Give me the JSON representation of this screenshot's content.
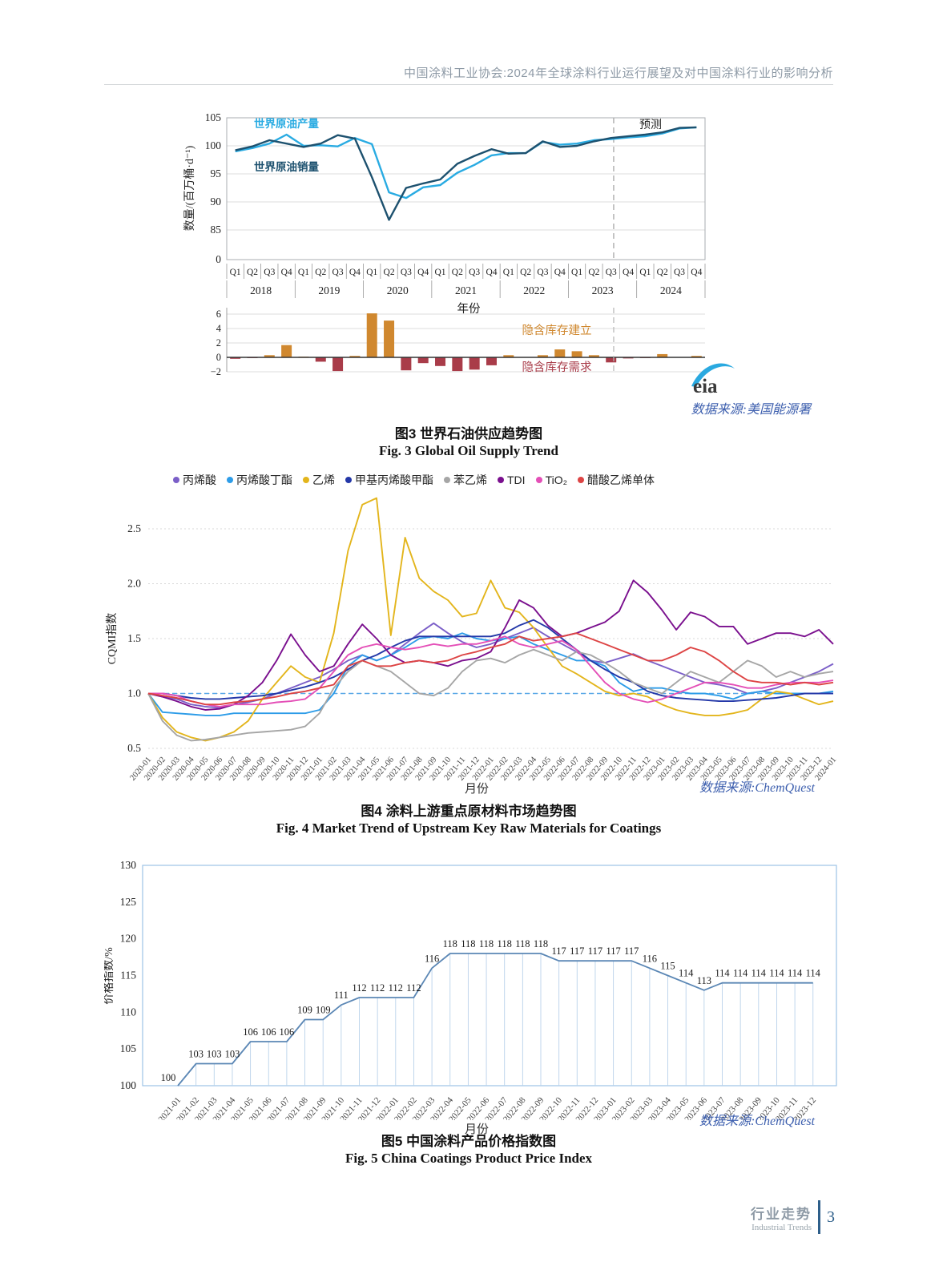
{
  "header": {
    "title": "中国涂料工业协会:2024年全球涂料行业运行展望及对中国涂料行业的影响分析"
  },
  "figures": {
    "fig3": {
      "caption_cn": "图3  世界石油供应趋势图",
      "caption_en": "Fig. 3  Global Oil Supply Trend",
      "source": "数据来源:美国能源署",
      "logo_text": "eia"
    },
    "fig4": {
      "caption_cn": "图4  涂料上游重点原材料市场趋势图",
      "caption_en": "Fig. 4  Market Trend of Upstream Key Raw Materials for Coatings",
      "source": "数据来源:ChemQuest",
      "xlabel": "月份"
    },
    "fig5": {
      "caption_cn": "图5  中国涂料产品价格指数图",
      "caption_en": "Fig. 5  China Coatings Product Price Index",
      "source": "数据来源:ChemQuest",
      "xlabel": "月份"
    }
  },
  "footer": {
    "section_cn": "行业走势",
    "section_en": "Industrial Trends",
    "page_number": "3"
  },
  "chart_data": [
    {
      "id": "fig3",
      "type": "line+bar",
      "title": "世界石油供应趋势图",
      "ylabel": "数量/(百万桶·d⁻¹)",
      "xlabel": "年份",
      "yticks": [
        105,
        100,
        95,
        90,
        85,
        0
      ],
      "ylim": [
        85,
        105
      ],
      "quarter_pattern": [
        "Q1",
        "Q2",
        "Q3",
        "Q4"
      ],
      "years": [
        "2018",
        "2019",
        "2020",
        "2021",
        "2022",
        "2023",
        "2024"
      ],
      "forecast_label": "预测",
      "series": [
        {
          "name": "世界原油产量",
          "color": "#29abe2",
          "values": [
            99.0,
            99.6,
            100.4,
            102.0,
            100.0,
            100.1,
            99.9,
            101.4,
            100.3,
            91.7,
            90.7,
            92.6,
            93.0,
            95.2,
            96.6,
            98.3,
            98.7,
            98.7,
            100.7,
            100.2,
            100.4,
            101.0,
            101.2,
            101.5,
            101.7,
            102.2,
            103.1,
            103.3
          ]
        },
        {
          "name": "世界原油销量",
          "color": "#1d516f",
          "values": [
            99.2,
            99.9,
            101.0,
            100.4,
            99.8,
            100.4,
            101.9,
            101.3,
            94.4,
            86.8,
            92.5,
            93.3,
            94.0,
            96.8,
            98.2,
            99.4,
            98.6,
            98.7,
            100.8,
            99.8,
            100.0,
            100.8,
            101.4,
            101.7,
            102.0,
            102.4,
            103.2,
            103.3
          ]
        }
      ],
      "bars": {
        "label_positive": "隐含库存建立",
        "label_negative": "隐含库存需求",
        "color_positive": "#d0882f",
        "color_negative": "#a93c49",
        "yticks": [
          6,
          4,
          2,
          0,
          -2
        ],
        "values": [
          -0.2,
          -0.1,
          0.3,
          1.7,
          0.1,
          -0.6,
          -1.9,
          0.2,
          6.1,
          5.1,
          -1.8,
          -0.8,
          -1.2,
          -1.9,
          -1.7,
          -1.1,
          0.3,
          0.05,
          0.3,
          1.1,
          0.85,
          0.3,
          -0.7,
          -0.15,
          -0.1,
          0.45,
          0.05,
          0.2
        ]
      }
    },
    {
      "id": "fig4",
      "type": "line",
      "title": "涂料上游重点原材料市场趋势图",
      "ylabel": "CQMI指数",
      "xlabel": "月份",
      "yticks": [
        2.5,
        2.0,
        1.5,
        1.0,
        0.5
      ],
      "baseline": 1.0,
      "x": [
        "2020-01",
        "2020-02",
        "2020-03",
        "2020-04",
        "2020-05",
        "2020-06",
        "2020-07",
        "2020-08",
        "2020-09",
        "2020-10",
        "2020-11",
        "2020-12",
        "2021-01",
        "2021-02",
        "2021-03",
        "2021-04",
        "2021-05",
        "2021-06",
        "2021-07",
        "2021-08",
        "2021-09",
        "2021-10",
        "2021-11",
        "2021-12",
        "2022-01",
        "2022-02",
        "2022-03",
        "2022-04",
        "2022-05",
        "2022-06",
        "2022-07",
        "2022-08",
        "2022-09",
        "2022-10",
        "2022-11",
        "2022-12",
        "2023-01",
        "2023-02",
        "2023-03",
        "2023-04",
        "2023-05",
        "2023-06",
        "2023-07",
        "2023-08",
        "2023-09",
        "2023-10",
        "2023-11",
        "2023-12",
        "2024-01"
      ],
      "series": [
        {
          "name": "丙烯酸",
          "color": "#7b5fc8",
          "values": [
            1.0,
            0.97,
            0.95,
            0.9,
            0.88,
            0.87,
            0.9,
            0.92,
            0.95,
            1.0,
            1.05,
            1.1,
            1.15,
            1.22,
            1.3,
            1.35,
            1.3,
            1.35,
            1.45,
            1.55,
            1.64,
            1.55,
            1.47,
            1.42,
            1.45,
            1.5,
            1.55,
            1.6,
            1.52,
            1.45,
            1.38,
            1.3,
            1.28,
            1.32,
            1.36,
            1.3,
            1.25,
            1.2,
            1.15,
            1.1,
            1.08,
            1.05,
            1.0,
            1.02,
            1.05,
            1.1,
            1.15,
            1.2,
            1.27
          ]
        },
        {
          "name": "丙烯酸丁酯",
          "color": "#2d9ce8",
          "values": [
            1.0,
            0.83,
            0.82,
            0.81,
            0.8,
            0.8,
            0.82,
            0.82,
            0.82,
            0.82,
            0.82,
            0.82,
            0.85,
            1.0,
            1.25,
            1.35,
            1.3,
            1.35,
            1.42,
            1.5,
            1.52,
            1.5,
            1.55,
            1.5,
            1.48,
            1.5,
            1.52,
            1.45,
            1.4,
            1.35,
            1.3,
            1.3,
            1.25,
            1.1,
            1.02,
            1.05,
            1.05,
            1.02,
            1.0,
            1.0,
            0.98,
            0.95,
            1.0,
            1.02,
            1.0,
            1.0,
            1.0,
            1.0,
            1.02
          ]
        },
        {
          "name": "乙烯",
          "color": "#e3b51c",
          "values": [
            1.0,
            0.78,
            0.65,
            0.6,
            0.57,
            0.6,
            0.65,
            0.75,
            0.95,
            1.1,
            1.25,
            1.15,
            1.1,
            1.55,
            2.3,
            2.72,
            2.78,
            1.53,
            2.42,
            2.05,
            1.93,
            1.85,
            1.7,
            1.73,
            2.03,
            1.78,
            1.74,
            1.6,
            1.42,
            1.25,
            1.18,
            1.1,
            1.02,
            0.98,
            1.0,
            0.97,
            0.9,
            0.85,
            0.82,
            0.8,
            0.8,
            0.82,
            0.85,
            0.95,
            1.02,
            1.0,
            0.95,
            0.9,
            0.93
          ]
        },
        {
          "name": "甲基丙烯酸甲酯",
          "color": "#2438a8",
          "values": [
            1.0,
            1.0,
            0.98,
            0.96,
            0.95,
            0.95,
            0.96,
            0.97,
            0.98,
            1.0,
            1.03,
            1.06,
            1.1,
            1.15,
            1.22,
            1.3,
            1.35,
            1.42,
            1.48,
            1.52,
            1.52,
            1.52,
            1.52,
            1.52,
            1.52,
            1.55,
            1.62,
            1.67,
            1.6,
            1.5,
            1.4,
            1.3,
            1.22,
            1.15,
            1.1,
            1.02,
            0.98,
            0.96,
            0.95,
            0.94,
            0.93,
            0.93,
            0.94,
            0.95,
            0.96,
            0.98,
            1.0,
            1.0,
            1.0
          ]
        },
        {
          "name": "苯乙烯",
          "color": "#a6a6a6",
          "values": [
            1.0,
            0.75,
            0.62,
            0.57,
            0.58,
            0.6,
            0.62,
            0.64,
            0.65,
            0.66,
            0.67,
            0.7,
            0.82,
            1.05,
            1.2,
            1.3,
            1.25,
            1.2,
            1.1,
            1.0,
            0.98,
            1.05,
            1.2,
            1.3,
            1.32,
            1.28,
            1.35,
            1.4,
            1.35,
            1.3,
            1.38,
            1.35,
            1.28,
            1.2,
            1.1,
            1.05,
            1.0,
            1.1,
            1.2,
            1.15,
            1.1,
            1.2,
            1.3,
            1.25,
            1.15,
            1.2,
            1.15,
            1.18,
            1.2
          ]
        },
        {
          "name": "TDI",
          "color": "#7a0f8e",
          "values": [
            1.0,
            0.97,
            0.93,
            0.88,
            0.85,
            0.86,
            0.9,
            0.98,
            1.1,
            1.3,
            1.54,
            1.35,
            1.2,
            1.25,
            1.45,
            1.63,
            1.5,
            1.35,
            1.28,
            1.3,
            1.28,
            1.25,
            1.3,
            1.32,
            1.38,
            1.6,
            1.85,
            1.78,
            1.62,
            1.52,
            1.55,
            1.6,
            1.65,
            1.75,
            2.03,
            1.92,
            1.76,
            1.58,
            1.74,
            1.7,
            1.61,
            1.61,
            1.45,
            1.5,
            1.55,
            1.55,
            1.52,
            1.58,
            1.45
          ]
        },
        {
          "name": "TiO₂",
          "color": "#e44fb7",
          "values": [
            1.0,
            1.0,
            0.98,
            0.93,
            0.9,
            0.88,
            0.9,
            0.9,
            0.9,
            0.92,
            0.93,
            0.95,
            1.05,
            1.2,
            1.35,
            1.42,
            1.45,
            1.42,
            1.4,
            1.42,
            1.45,
            1.43,
            1.45,
            1.45,
            1.48,
            1.52,
            1.45,
            1.42,
            1.45,
            1.48,
            1.4,
            1.25,
            1.1,
            1.0,
            0.95,
            0.92,
            0.95,
            1.0,
            1.05,
            1.1,
            1.1,
            1.08,
            1.05,
            1.05,
            1.08,
            1.1,
            1.1,
            1.1,
            1.12
          ]
        },
        {
          "name": "醋酸乙烯单体",
          "color": "#dd4444",
          "values": [
            1.0,
            0.98,
            0.96,
            0.93,
            0.9,
            0.9,
            0.92,
            0.93,
            0.95,
            0.97,
            1.0,
            1.02,
            1.05,
            1.08,
            1.25,
            1.3,
            1.25,
            1.25,
            1.28,
            1.3,
            1.28,
            1.3,
            1.35,
            1.38,
            1.42,
            1.45,
            1.52,
            1.48,
            1.5,
            1.52,
            1.55,
            1.5,
            1.45,
            1.4,
            1.35,
            1.3,
            1.3,
            1.35,
            1.42,
            1.38,
            1.3,
            1.2,
            1.12,
            1.1,
            1.1,
            1.08,
            1.1,
            1.08,
            1.1
          ]
        }
      ]
    },
    {
      "id": "fig5",
      "type": "line",
      "title": "中国涂料产品价格指数图",
      "ylabel": "价格指数/%",
      "xlabel": "月份",
      "yticks": [
        130,
        125,
        120,
        115,
        110,
        105,
        100
      ],
      "ylim": [
        100,
        130
      ],
      "line_color": "#5b87b5",
      "x": [
        "2021-01",
        "2021-02",
        "2021-03",
        "2021-04",
        "2021-05",
        "2021-06",
        "2021-07",
        "2021-08",
        "2021-09",
        "2021-10",
        "2021-11",
        "2021-12",
        "2022-01",
        "2022-02",
        "2022-03",
        "2022-04",
        "2022-05",
        "2022-06",
        "2022-07",
        "2022-08",
        "2022-09",
        "2022-10",
        "2022-11",
        "2022-12",
        "2023-01",
        "2023-02",
        "2023-03",
        "2023-04",
        "2023-05",
        "2023-06",
        "2023-07",
        "2023-08",
        "2023-09",
        "2023-10",
        "2023-11",
        "2023-12"
      ],
      "values": [
        100,
        103,
        103,
        103,
        106,
        106,
        106,
        109,
        109,
        111,
        112,
        112,
        112,
        112,
        116,
        118,
        118,
        118,
        118,
        118,
        118,
        117,
        117,
        117,
        117,
        117,
        116,
        115,
        114,
        113,
        114,
        114,
        114,
        114,
        114,
        114
      ]
    }
  ]
}
